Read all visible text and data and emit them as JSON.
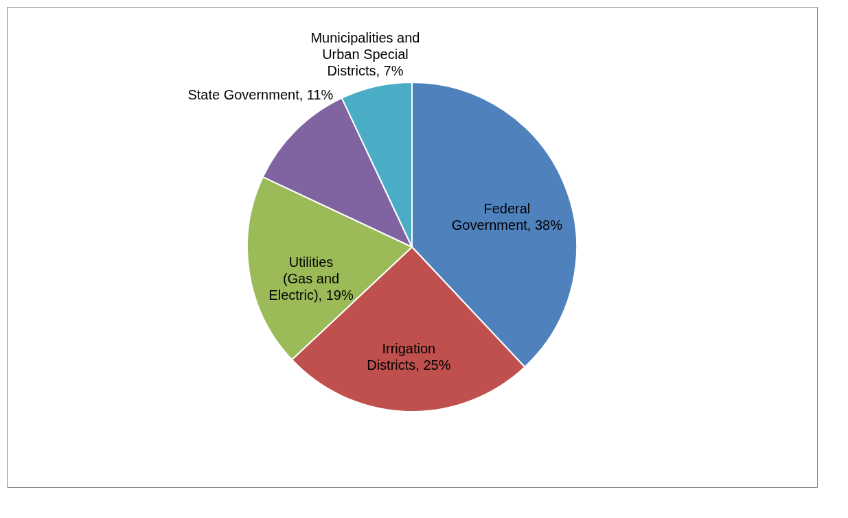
{
  "chart_data": {
    "type": "pie",
    "categories": [
      "Federal Government",
      "Irrigation Districts",
      "Utilities (Gas and Electric)",
      "State Government",
      "Municipalities and Urban Special Districts"
    ],
    "values": [
      38,
      25,
      19,
      11,
      7
    ],
    "value_labels": [
      "38%",
      "25%",
      "19%",
      "11%",
      "7%"
    ],
    "colors": [
      "#4f81bd",
      "#c0504d",
      "#9bbb59",
      "#8064a2",
      "#4bacc6"
    ],
    "legend": false
  }
}
